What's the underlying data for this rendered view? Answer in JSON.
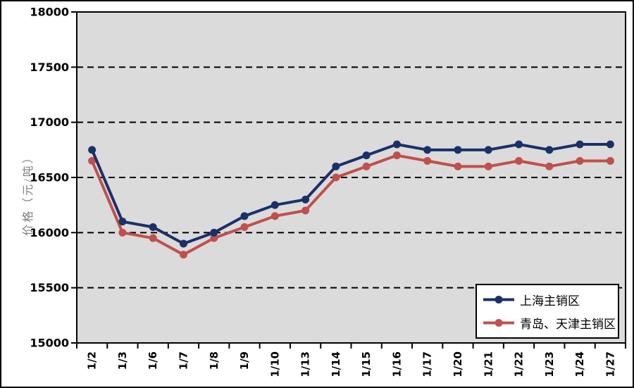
{
  "chart_data": {
    "type": "line",
    "title": "",
    "categories": [
      "1/2",
      "1/3",
      "1/6",
      "1/7",
      "1/8",
      "1/9",
      "1/10",
      "1/13",
      "1/14",
      "1/15",
      "1/16",
      "1/17",
      "1/20",
      "1/21",
      "1/22",
      "1/23",
      "1/24",
      "1/27"
    ],
    "series": [
      {
        "name": "上海主销区",
        "color": "#1B3068",
        "marker": "circle",
        "values": [
          16750,
          16100,
          16050,
          15900,
          16000,
          16150,
          16250,
          16300,
          16600,
          16700,
          16800,
          16750,
          16750,
          16750,
          16800,
          16750,
          16800,
          16800
        ]
      },
      {
        "name": "青岛、天津主销区",
        "color": "#C0504D",
        "marker": "circle",
        "values": [
          16650,
          16000,
          15950,
          15800,
          15950,
          16050,
          16150,
          16200,
          16500,
          16600,
          16700,
          16650,
          16600,
          16600,
          16650,
          16600,
          16650,
          16650
        ]
      }
    ],
    "xlabel": "",
    "ylabel": "价格（元/吨）",
    "ylim": [
      15000,
      18000
    ],
    "y_ticks": [
      15000,
      15500,
      16000,
      16500,
      17000,
      17500,
      18000
    ],
    "grid": "horizontal-dashed",
    "grid_color": "#000000",
    "axis_color": "#000000",
    "plot_background": "#DBDBDB",
    "ylabel_color": "#7F7F7F",
    "legend_position": "inside-bottom-right"
  }
}
